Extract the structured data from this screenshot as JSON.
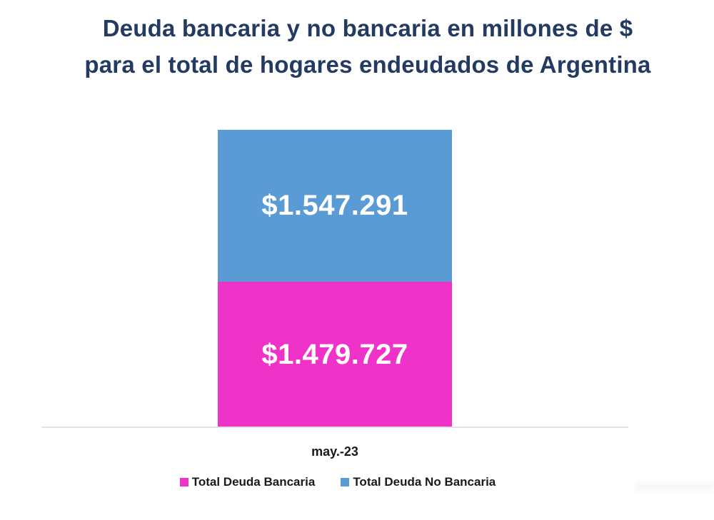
{
  "title": {
    "line1": "Deuda bancaria y no bancaria en millones de $",
    "line2": "para el total de hogares endeudados de Argentina"
  },
  "colors": {
    "title": "#233a62",
    "bancaria": "#f033c8",
    "no_bancaria": "#5b9bd5",
    "axis": "#e3e3e3"
  },
  "bar": {
    "category": "may.-23",
    "segments": [
      {
        "name": "Total Deuda Bancaria",
        "value": 1479727,
        "label": "$1.479.727"
      },
      {
        "name": "Total Deuda No Bancaria",
        "value": 1547291,
        "label": "$1.547.291"
      }
    ]
  },
  "legend": [
    {
      "label": "Total Deuda Bancaria",
      "color": "#f033c8"
    },
    {
      "label": "Total Deuda No Bancaria",
      "color": "#5b9bd5"
    }
  ],
  "chart_data": {
    "type": "bar",
    "stacked": true,
    "title": "Deuda bancaria y no bancaria en millones de $ para el total de hogares endeudados de Argentina",
    "categories": [
      "may.-23"
    ],
    "series": [
      {
        "name": "Total Deuda Bancaria",
        "values": [
          1479727
        ],
        "color": "#f033c8"
      },
      {
        "name": "Total Deuda No Bancaria",
        "values": [
          1547291
        ],
        "color": "#5b9bd5"
      }
    ],
    "data_labels": [
      "$1.479.727",
      "$1.547.291"
    ],
    "xlabel": "",
    "ylabel": "",
    "y_axis_visible": false,
    "grid": false,
    "legend_position": "bottom"
  }
}
